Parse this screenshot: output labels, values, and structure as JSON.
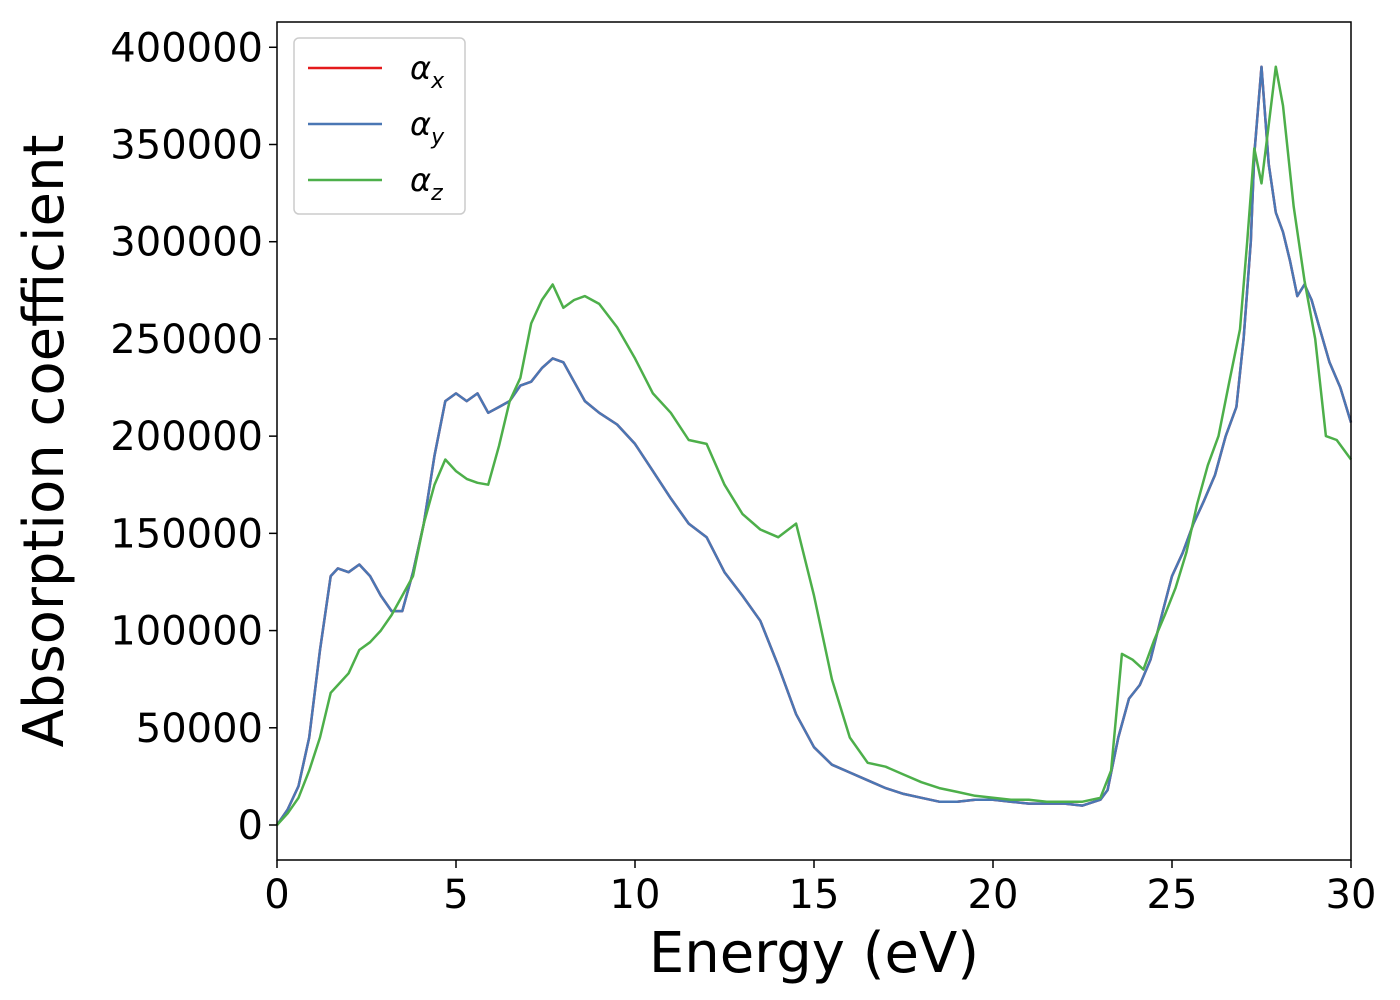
{
  "chart_data": {
    "type": "line",
    "title": "",
    "xlabel": "Energy (eV)",
    "ylabel": "Absorption coefficient",
    "xlim": [
      0,
      30
    ],
    "ylim": [
      -18000,
      413000
    ],
    "xticks": [
      "0",
      "5",
      "10",
      "15",
      "20",
      "25",
      "30"
    ],
    "yticks": [
      "0",
      "50000",
      "100000",
      "150000",
      "200000",
      "250000",
      "300000",
      "350000",
      "400000"
    ],
    "grid": false,
    "legend_position": "top-left",
    "series": [
      {
        "name": "αx",
        "label_base": "α",
        "label_sub": "x",
        "color": "#e41a1c",
        "x": [
          0,
          0.3,
          0.6,
          0.9,
          1.2,
          1.5,
          1.7,
          2.0,
          2.3,
          2.6,
          2.9,
          3.2,
          3.5,
          3.8,
          4.1,
          4.4,
          4.7,
          5.0,
          5.3,
          5.6,
          5.9,
          6.2,
          6.5,
          6.8,
          7.1,
          7.4,
          7.7,
          8.0,
          8.3,
          8.6,
          9.0,
          9.5,
          10.0,
          10.5,
          11.0,
          11.5,
          12.0,
          12.5,
          13.0,
          13.5,
          14.0,
          14.5,
          15.0,
          15.5,
          16.0,
          16.5,
          17.0,
          17.5,
          18.0,
          18.5,
          19.0,
          19.5,
          20.0,
          20.5,
          21.0,
          21.5,
          22.0,
          22.5,
          23.0,
          23.2,
          23.5,
          23.8,
          24.1,
          24.4,
          24.7,
          25.0,
          25.3,
          25.6,
          25.9,
          26.2,
          26.5,
          26.8,
          27.0,
          27.2,
          27.3,
          27.5,
          27.7,
          27.9,
          28.1,
          28.3,
          28.5,
          28.7,
          28.9,
          29.1,
          29.4,
          29.7,
          30.0
        ],
        "y": [
          0,
          8000,
          20000,
          45000,
          90000,
          128000,
          132000,
          130000,
          134000,
          128000,
          118000,
          110000,
          110000,
          130000,
          155000,
          190000,
          218000,
          222000,
          218000,
          222000,
          212000,
          215000,
          218000,
          226000,
          228000,
          235000,
          240000,
          238000,
          228000,
          218000,
          212000,
          206000,
          196000,
          182000,
          168000,
          155000,
          148000,
          130000,
          118000,
          105000,
          82000,
          57000,
          40000,
          31000,
          27000,
          23000,
          19000,
          16000,
          14000,
          12000,
          12000,
          13000,
          13000,
          12000,
          11000,
          11000,
          11000,
          10000,
          13000,
          18000,
          45000,
          65000,
          72000,
          85000,
          107000,
          128000,
          140000,
          155000,
          167000,
          180000,
          200000,
          215000,
          250000,
          300000,
          345000,
          390000,
          340000,
          315000,
          305000,
          290000,
          272000,
          278000,
          270000,
          257000,
          238000,
          225000,
          207000
        ]
      },
      {
        "name": "αy",
        "label_base": "α",
        "label_sub": "y",
        "color": "#4a77b4",
        "x": [
          0,
          0.3,
          0.6,
          0.9,
          1.2,
          1.5,
          1.7,
          2.0,
          2.3,
          2.6,
          2.9,
          3.2,
          3.5,
          3.8,
          4.1,
          4.4,
          4.7,
          5.0,
          5.3,
          5.6,
          5.9,
          6.2,
          6.5,
          6.8,
          7.1,
          7.4,
          7.7,
          8.0,
          8.3,
          8.6,
          9.0,
          9.5,
          10.0,
          10.5,
          11.0,
          11.5,
          12.0,
          12.5,
          13.0,
          13.5,
          14.0,
          14.5,
          15.0,
          15.5,
          16.0,
          16.5,
          17.0,
          17.5,
          18.0,
          18.5,
          19.0,
          19.5,
          20.0,
          20.5,
          21.0,
          21.5,
          22.0,
          22.5,
          23.0,
          23.2,
          23.5,
          23.8,
          24.1,
          24.4,
          24.7,
          25.0,
          25.3,
          25.6,
          25.9,
          26.2,
          26.5,
          26.8,
          27.0,
          27.2,
          27.3,
          27.5,
          27.7,
          27.9,
          28.1,
          28.3,
          28.5,
          28.7,
          28.9,
          29.1,
          29.4,
          29.7,
          30.0
        ],
        "y": [
          0,
          8000,
          20000,
          45000,
          90000,
          128000,
          132000,
          130000,
          134000,
          128000,
          118000,
          110000,
          110000,
          130000,
          155000,
          190000,
          218000,
          222000,
          218000,
          222000,
          212000,
          215000,
          218000,
          226000,
          228000,
          235000,
          240000,
          238000,
          228000,
          218000,
          212000,
          206000,
          196000,
          182000,
          168000,
          155000,
          148000,
          130000,
          118000,
          105000,
          82000,
          57000,
          40000,
          31000,
          27000,
          23000,
          19000,
          16000,
          14000,
          12000,
          12000,
          13000,
          13000,
          12000,
          11000,
          11000,
          11000,
          10000,
          13000,
          18000,
          45000,
          65000,
          72000,
          85000,
          107000,
          128000,
          140000,
          155000,
          167000,
          180000,
          200000,
          215000,
          250000,
          300000,
          345000,
          390000,
          340000,
          315000,
          305000,
          290000,
          272000,
          278000,
          270000,
          257000,
          238000,
          225000,
          207000
        ]
      },
      {
        "name": "αz",
        "label_base": "α",
        "label_sub": "z",
        "color": "#4daf4a",
        "x": [
          0,
          0.3,
          0.6,
          0.9,
          1.2,
          1.5,
          1.7,
          2.0,
          2.3,
          2.6,
          2.9,
          3.2,
          3.5,
          3.8,
          4.1,
          4.4,
          4.7,
          5.0,
          5.3,
          5.6,
          5.9,
          6.2,
          6.5,
          6.8,
          7.1,
          7.4,
          7.7,
          8.0,
          8.3,
          8.6,
          9.0,
          9.5,
          10.0,
          10.5,
          11.0,
          11.5,
          12.0,
          12.5,
          13.0,
          13.5,
          14.0,
          14.5,
          15.0,
          15.5,
          16.0,
          16.5,
          17.0,
          17.5,
          18.0,
          18.5,
          19.0,
          19.5,
          20.0,
          20.5,
          21.0,
          21.5,
          22.0,
          22.5,
          23.0,
          23.3,
          23.6,
          23.9,
          24.2,
          24.5,
          24.8,
          25.1,
          25.4,
          25.7,
          26.0,
          26.3,
          26.6,
          26.9,
          27.1,
          27.3,
          27.5,
          27.7,
          27.9,
          28.1,
          28.4,
          28.7,
          29.0,
          29.3,
          29.6,
          30.0
        ],
        "y": [
          0,
          6000,
          14000,
          28000,
          45000,
          68000,
          72000,
          78000,
          90000,
          94000,
          100000,
          108000,
          118000,
          128000,
          155000,
          175000,
          188000,
          182000,
          178000,
          176000,
          175000,
          195000,
          218000,
          230000,
          258000,
          270000,
          278000,
          266000,
          270000,
          272000,
          268000,
          256000,
          240000,
          222000,
          212000,
          198000,
          196000,
          175000,
          160000,
          152000,
          148000,
          155000,
          118000,
          75000,
          45000,
          32000,
          30000,
          26000,
          22000,
          19000,
          17000,
          15000,
          14000,
          13000,
          13000,
          12000,
          12000,
          12000,
          14000,
          28000,
          88000,
          85000,
          80000,
          95000,
          108000,
          122000,
          140000,
          165000,
          185000,
          200000,
          228000,
          255000,
          300000,
          348000,
          330000,
          360000,
          390000,
          370000,
          318000,
          280000,
          250000,
          200000,
          198000,
          188000
        ]
      }
    ]
  }
}
